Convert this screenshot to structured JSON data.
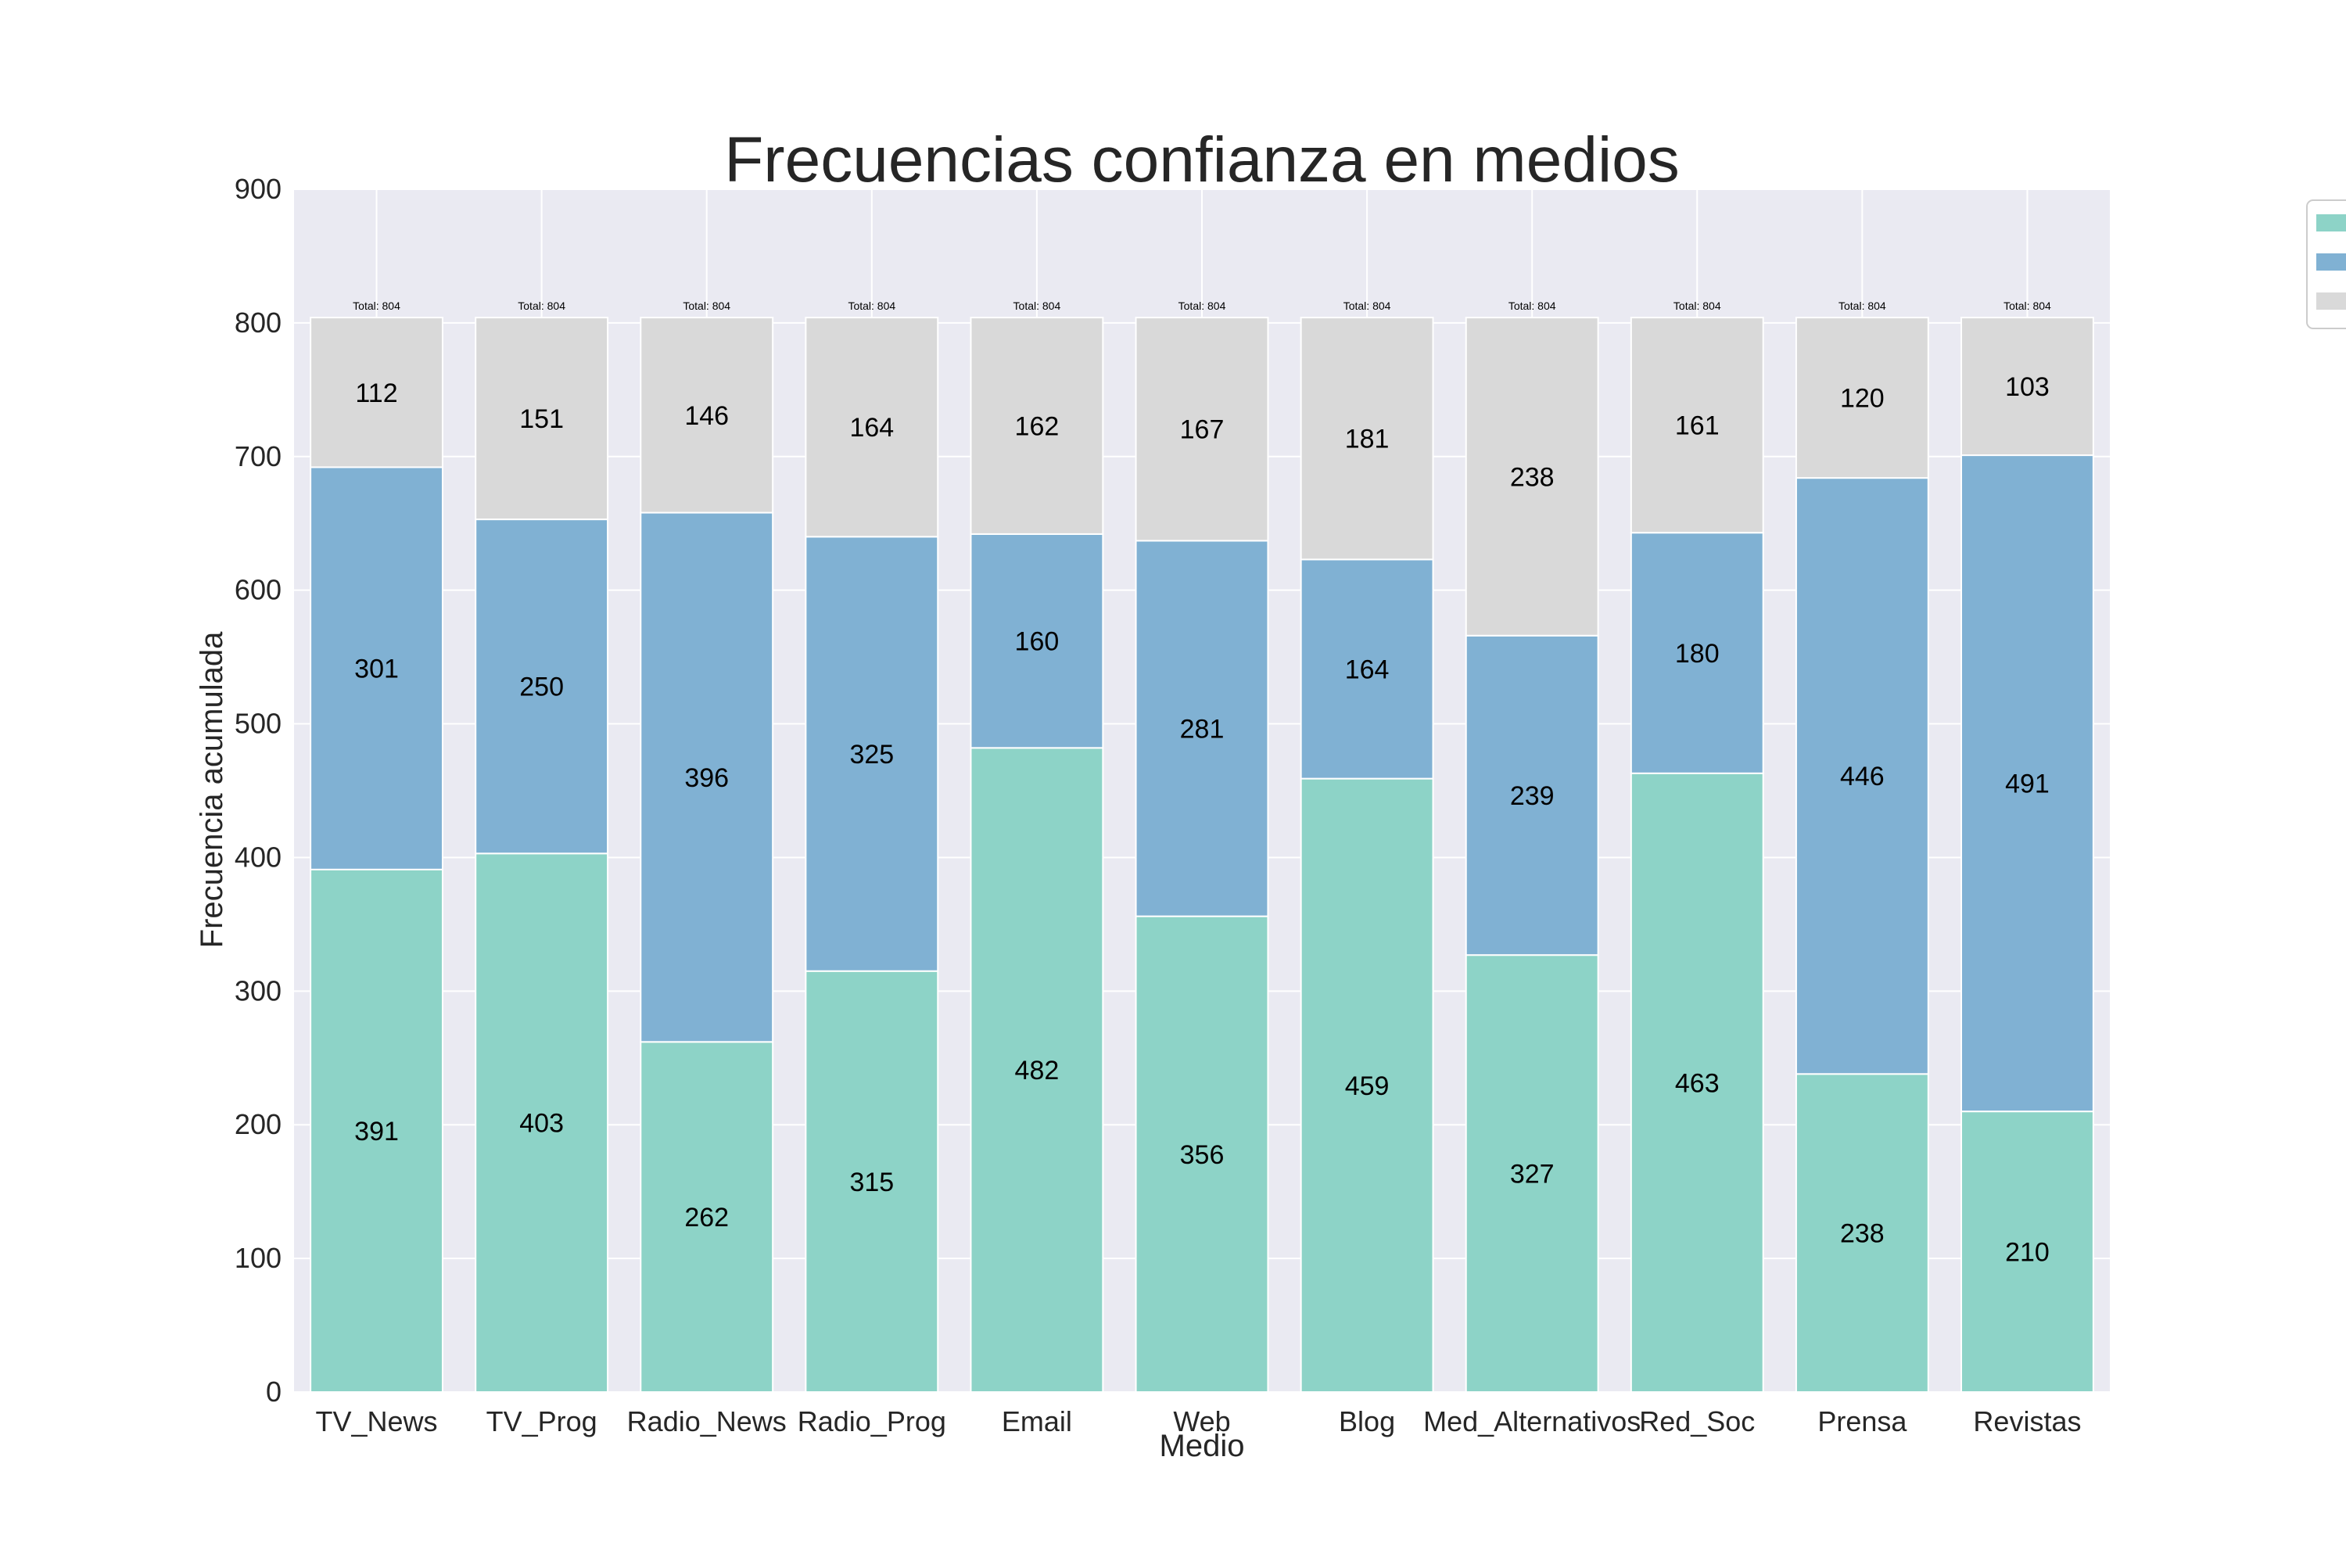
{
  "chart_data": {
    "type": "bar",
    "stacked": true,
    "title": "Frecuencias confianza en medios",
    "xlabel": "Medio",
    "ylabel": "Frecuencia acumulada",
    "ylim": [
      0,
      900
    ],
    "yticks": [
      0,
      100,
      200,
      300,
      400,
      500,
      600,
      700,
      800,
      900
    ],
    "grid": true,
    "legend_position": "top-right, outside the plot",
    "categories": [
      "TV_News",
      "TV_Prog",
      "Radio_News",
      "Radio_Prog",
      "Email",
      "Web",
      "Blog",
      "Med_Alternativos",
      "Red_Soc",
      "Prensa",
      "Revistas"
    ],
    "series": [
      {
        "color": "#8dd3c7",
        "values": [
          391,
          403,
          262,
          315,
          482,
          356,
          459,
          327,
          463,
          238,
          210
        ]
      },
      {
        "color": "#80b1d3",
        "values": [
          301,
          250,
          396,
          325,
          160,
          281,
          164,
          239,
          180,
          446,
          491
        ]
      },
      {
        "color": "#d9d9d9",
        "values": [
          112,
          151,
          146,
          164,
          162,
          167,
          181,
          238,
          161,
          120,
          103
        ]
      }
    ],
    "totals": [
      "Total: 804",
      "Total: 804",
      "Total: 804",
      "Total: 804",
      "Total: 804",
      "Total: 804",
      "Total: 804",
      "Total: 804",
      "Total: 804",
      "Total: 804",
      "Total: 804"
    ]
  },
  "colors": {
    "plot_background": "#eaeaf2",
    "grid": "#ffffff",
    "text": "#262626"
  }
}
